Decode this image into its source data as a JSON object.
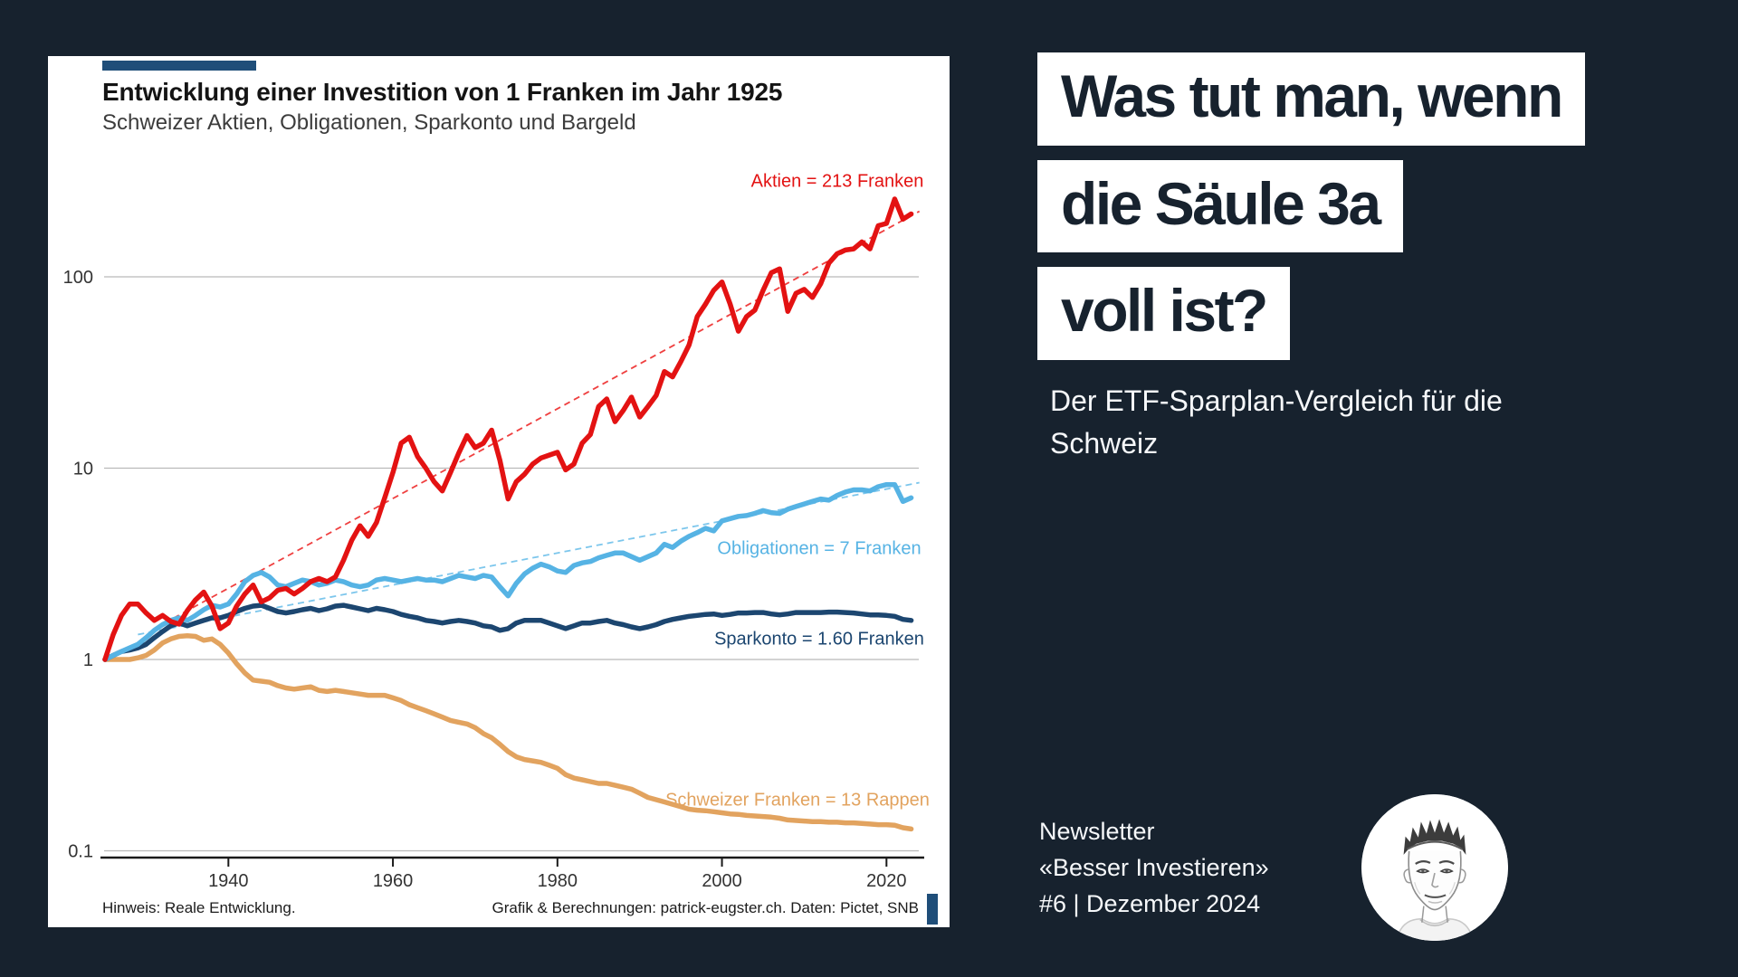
{
  "page": {
    "background": "#17222e",
    "accent_color": "#1f4e79"
  },
  "chart_panel": {
    "title": "Entwicklung einer Investition von 1 Franken im Jahr 1925",
    "subtitle": "Schweizer Aktien, Obligationen, Sparkonto und Bargeld",
    "footnote_left": "Hinweis: Reale Entwicklung.",
    "footnote_right": "Grafik & Berechnungen: patrick-eugster.ch. Daten: Pictet, SNB"
  },
  "chart_data": {
    "type": "line",
    "title": "Entwicklung einer Investition von 1 Franken im Jahr 1925",
    "subtitle": "Schweizer Aktien, Obligationen, Sparkonto und Bargeld",
    "y_scale": "log10",
    "ylim": [
      0.1,
      300
    ],
    "y_ticks": [
      100,
      10,
      1,
      0.1
    ],
    "x_range": [
      1925,
      2023
    ],
    "x_ticks": [
      1940,
      1960,
      1980,
      2000,
      2020
    ],
    "grid": "horizontal",
    "legend_position": "inline-labels",
    "series": [
      {
        "name": "Schweizer Franken",
        "label": "Schweizer Franken = 13 Rappen",
        "color": "#e2a35f",
        "end_value": 0.13,
        "end_value_text": "13 Rappen",
        "start_year": 1925,
        "values": [
          1,
          1,
          1,
          1,
          1.02,
          1.05,
          1.12,
          1.22,
          1.28,
          1.32,
          1.33,
          1.32,
          1.26,
          1.28,
          1.2,
          1.08,
          0.95,
          0.85,
          0.78,
          0.77,
          0.76,
          0.73,
          0.71,
          0.7,
          0.71,
          0.72,
          0.69,
          0.68,
          0.69,
          0.68,
          0.67,
          0.66,
          0.65,
          0.65,
          0.65,
          0.63,
          0.61,
          0.58,
          0.56,
          0.54,
          0.52,
          0.5,
          0.48,
          0.47,
          0.46,
          0.44,
          0.41,
          0.39,
          0.36,
          0.33,
          0.31,
          0.3,
          0.295,
          0.29,
          0.28,
          0.27,
          0.25,
          0.24,
          0.235,
          0.23,
          0.225,
          0.225,
          0.22,
          0.215,
          0.21,
          0.2,
          0.19,
          0.185,
          0.18,
          0.175,
          0.17,
          0.165,
          0.163,
          0.162,
          0.16,
          0.158,
          0.156,
          0.155,
          0.153,
          0.152,
          0.151,
          0.15,
          0.148,
          0.145,
          0.144,
          0.143,
          0.142,
          0.142,
          0.141,
          0.141,
          0.14,
          0.14,
          0.139,
          0.138,
          0.137,
          0.137,
          0.136,
          0.132,
          0.13
        ]
      },
      {
        "name": "Sparkonto",
        "label": "Sparkonto = 1.60 Franken",
        "color": "#1c4670",
        "end_value": 1.6,
        "end_value_text": "1.60 Franken",
        "start_year": 1925,
        "values": [
          1,
          1.05,
          1.1,
          1.12,
          1.15,
          1.2,
          1.3,
          1.4,
          1.5,
          1.55,
          1.5,
          1.55,
          1.6,
          1.65,
          1.65,
          1.7,
          1.78,
          1.85,
          1.9,
          1.92,
          1.85,
          1.78,
          1.75,
          1.78,
          1.82,
          1.85,
          1.8,
          1.84,
          1.9,
          1.92,
          1.88,
          1.84,
          1.8,
          1.85,
          1.82,
          1.78,
          1.72,
          1.68,
          1.65,
          1.6,
          1.58,
          1.55,
          1.58,
          1.6,
          1.58,
          1.55,
          1.5,
          1.48,
          1.42,
          1.45,
          1.55,
          1.6,
          1.6,
          1.6,
          1.55,
          1.5,
          1.45,
          1.5,
          1.55,
          1.55,
          1.58,
          1.6,
          1.55,
          1.52,
          1.48,
          1.45,
          1.48,
          1.52,
          1.58,
          1.62,
          1.65,
          1.68,
          1.7,
          1.72,
          1.73,
          1.7,
          1.72,
          1.75,
          1.75,
          1.76,
          1.76,
          1.73,
          1.71,
          1.73,
          1.76,
          1.76,
          1.76,
          1.76,
          1.77,
          1.77,
          1.76,
          1.75,
          1.73,
          1.71,
          1.71,
          1.7,
          1.68,
          1.62,
          1.6
        ]
      },
      {
        "name": "Obligationen",
        "label": "Obligationen = 7 Franken",
        "color": "#56b3e4",
        "end_value": 7,
        "end_value_text": "7 Franken",
        "start_year": 1925,
        "trend": {
          "from": [
            1929,
            1.35
          ],
          "to": [
            2024,
            8.4
          ],
          "color": "#7cc6ec"
        },
        "values": [
          1,
          1.05,
          1.1,
          1.15,
          1.2,
          1.3,
          1.42,
          1.52,
          1.6,
          1.65,
          1.6,
          1.7,
          1.82,
          1.92,
          1.88,
          1.95,
          2.2,
          2.55,
          2.75,
          2.85,
          2.7,
          2.45,
          2.4,
          2.5,
          2.6,
          2.55,
          2.45,
          2.5,
          2.6,
          2.55,
          2.45,
          2.4,
          2.45,
          2.6,
          2.65,
          2.6,
          2.55,
          2.6,
          2.65,
          2.6,
          2.6,
          2.55,
          2.65,
          2.75,
          2.7,
          2.65,
          2.75,
          2.7,
          2.4,
          2.15,
          2.5,
          2.8,
          3,
          3.15,
          3.05,
          2.9,
          2.85,
          3.1,
          3.2,
          3.25,
          3.4,
          3.5,
          3.6,
          3.6,
          3.45,
          3.3,
          3.45,
          3.6,
          4,
          3.85,
          4.15,
          4.4,
          4.6,
          4.85,
          4.7,
          5.3,
          5.45,
          5.6,
          5.65,
          5.8,
          6,
          5.85,
          5.8,
          6.1,
          6.3,
          6.5,
          6.7,
          6.9,
          6.8,
          7.2,
          7.5,
          7.7,
          7.7,
          7.6,
          8,
          8.2,
          8.2,
          6.7,
          7
        ]
      },
      {
        "name": "Aktien",
        "label": "Aktien = 213 Franken",
        "color": "#e31212",
        "end_value": 213,
        "end_value_text": "213 Franken",
        "start_year": 1925,
        "trend": {
          "from": [
            1931,
            1.45
          ],
          "to": [
            2024,
            220
          ],
          "color": "#ef4040"
        },
        "values": [
          1,
          1.35,
          1.7,
          1.95,
          1.95,
          1.75,
          1.6,
          1.7,
          1.58,
          1.53,
          1.8,
          2.05,
          2.25,
          1.9,
          1.45,
          1.55,
          1.9,
          2.2,
          2.45,
          2,
          2.1,
          2.3,
          2.35,
          2.2,
          2.35,
          2.55,
          2.65,
          2.55,
          2.7,
          3.3,
          4.2,
          5,
          4.4,
          5.2,
          7,
          9.5,
          13.5,
          14.5,
          11.5,
          10,
          8.5,
          7.6,
          9.5,
          12,
          14.8,
          12.8,
          13.5,
          15.8,
          11,
          6.9,
          8.5,
          9.3,
          10.5,
          11.3,
          11.7,
          12.1,
          9.8,
          10.5,
          13.5,
          15,
          21,
          23,
          17.5,
          20,
          23.5,
          18.5,
          21,
          24,
          32,
          30,
          36,
          44,
          62,
          72,
          85,
          94,
          72,
          52,
          62,
          67,
          85,
          105,
          110,
          66,
          82,
          86,
          78,
          92,
          118,
          132,
          138,
          140,
          152,
          140,
          185,
          190,
          255,
          200,
          213
        ]
      }
    ]
  },
  "right_panel": {
    "headline_lines": [
      "Was tut man, wenn",
      "die Säule 3a",
      "voll ist?"
    ],
    "subheadline": "Der ETF-Sparplan-Vergleich für die Schweiz",
    "newsletter_lines": [
      "Newsletter",
      "«Besser Investieren»",
      "#6 | Dezember 2024"
    ],
    "avatar": "portrait-sketch"
  }
}
